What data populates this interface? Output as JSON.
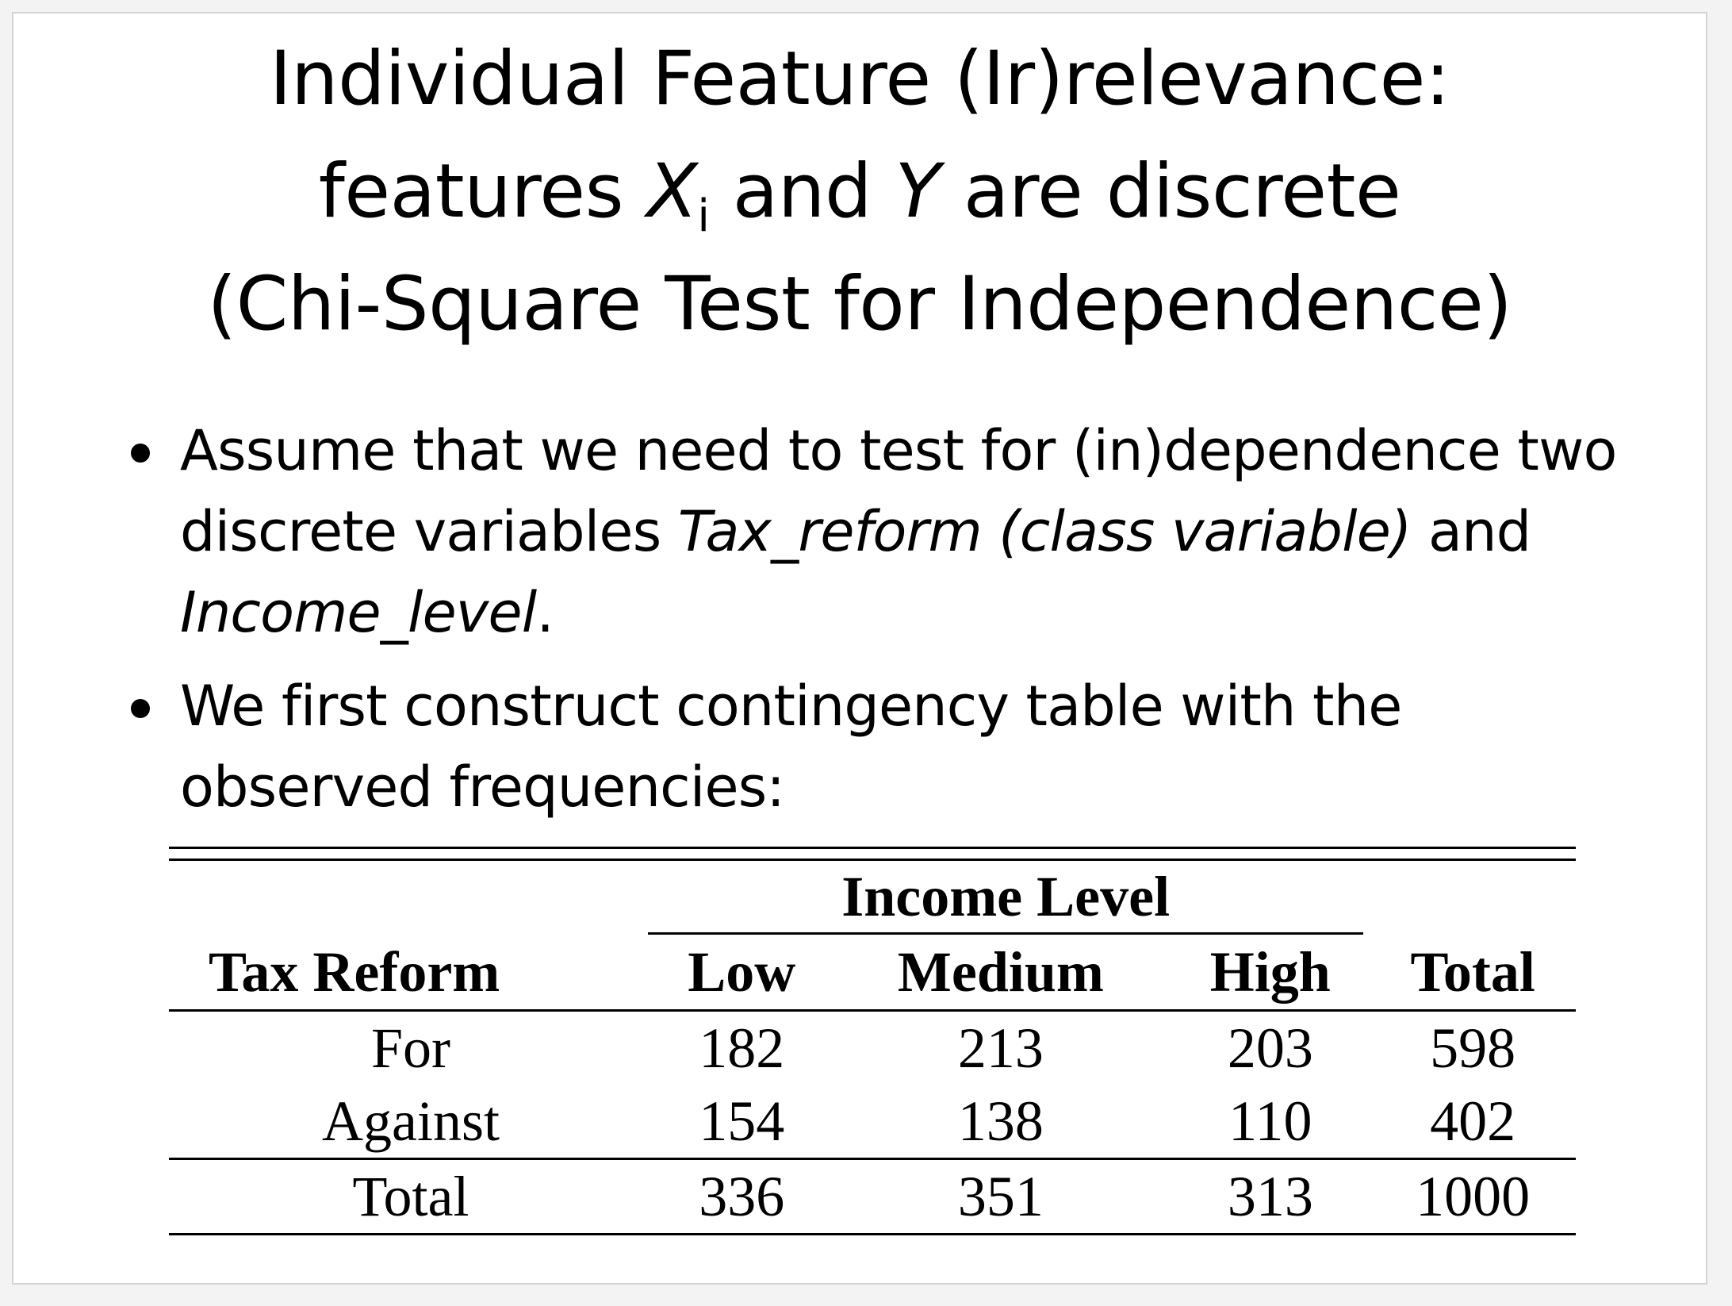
{
  "slide": {
    "title": {
      "line1": "Individual Feature (Ir)relevance:",
      "line2_pre": "features ",
      "line2_var1": "X",
      "line2_sub": "i",
      "line2_mid": " and ",
      "line2_var2": "Y",
      "line2_post": " are discrete",
      "line3": "(Chi-Square Test for Independence)"
    },
    "bullets": [
      {
        "text_a": "Assume that we need to test for (in)dependence two discrete variables ",
        "italic_a": "Tax_reform (class variable)",
        "text_b": " and ",
        "italic_b": "Income_level",
        "text_c": "."
      },
      {
        "text_a": "We first construct contingency table with the observed frequencies:"
      }
    ],
    "table": {
      "group_header": "Income Level",
      "headers": [
        "Tax Reform",
        "Low",
        "Medium",
        "High",
        "Total"
      ],
      "rows": [
        [
          "For",
          "182",
          "213",
          "203",
          "598"
        ],
        [
          "Against",
          "154",
          "138",
          "110",
          "402"
        ]
      ],
      "total_row": [
        "Total",
        "336",
        "351",
        "313",
        "1000"
      ]
    }
  }
}
